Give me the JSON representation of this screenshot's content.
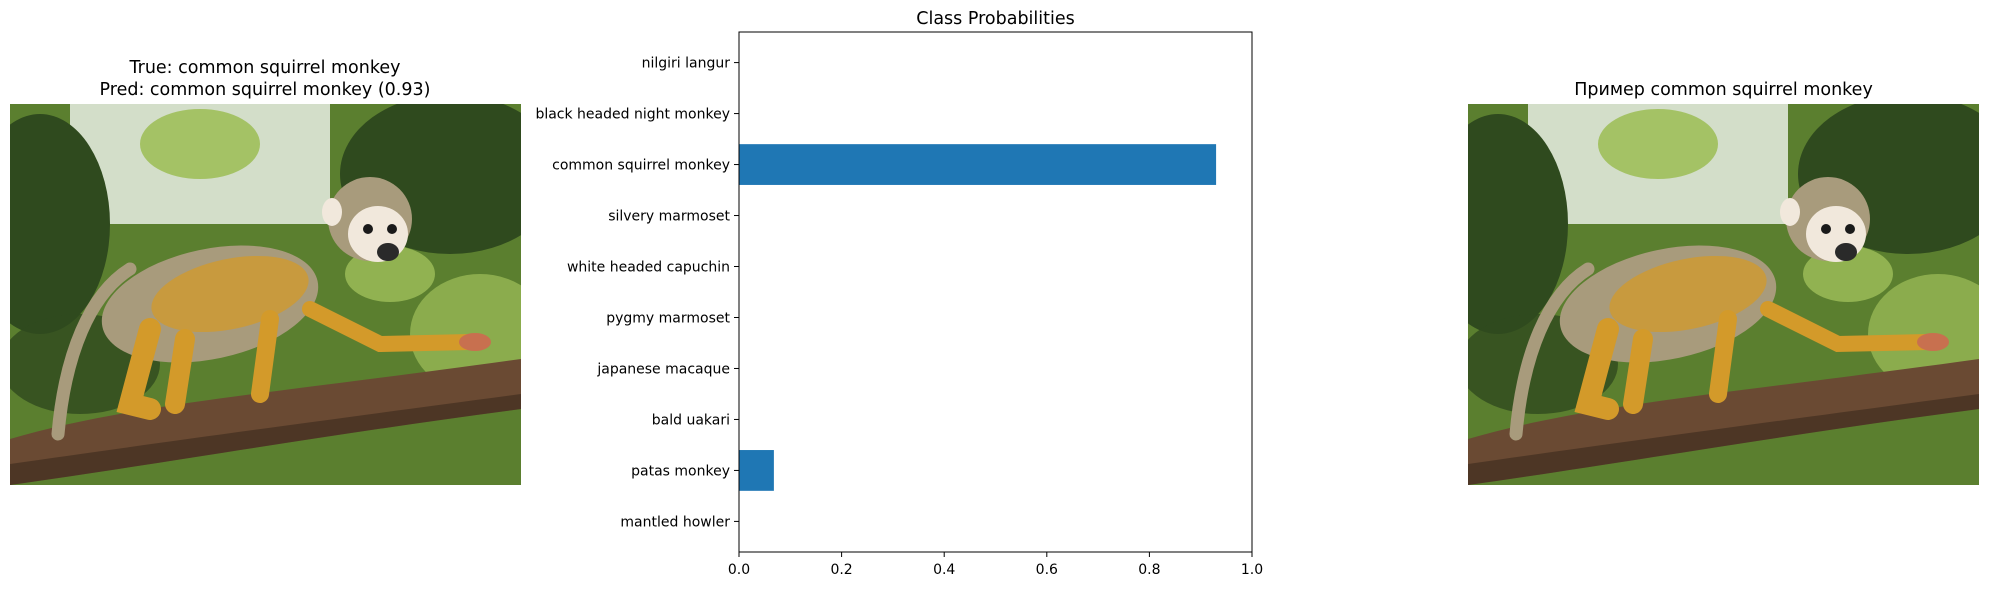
{
  "left_panel": {
    "title_line1": "True: common squirrel monkey",
    "title_line2": "Pred: common squirrel monkey (0.93)"
  },
  "right_panel": {
    "title": "Пример common squirrel monkey"
  },
  "photo_colors": {
    "sky": "#e9efe4",
    "foliage_dark": "#2f4a1e",
    "foliage_mid": "#5b7f2f",
    "foliage_light": "#9fbf5a",
    "branch": "#6a4a33",
    "branch_dark": "#3b2a1c",
    "fur_gold": "#d39a2a",
    "fur_grey": "#a89b7c",
    "face": "#f1e8dc"
  },
  "chart_data": {
    "type": "bar",
    "orientation": "horizontal",
    "title": "Class Probabilities",
    "xlabel": "",
    "ylabel": "",
    "xlim": [
      0,
      1.0
    ],
    "xticks": [
      "0.0",
      "0.2",
      "0.4",
      "0.6",
      "0.8",
      "1.0"
    ],
    "categories": [
      "nilgiri langur",
      "black headed night monkey",
      "common squirrel monkey",
      "silvery marmoset",
      "white headed capuchin",
      "pygmy marmoset",
      "japanese macaque",
      "bald uakari",
      "patas monkey",
      "mantled howler"
    ],
    "values": [
      0.0,
      0.0,
      0.93,
      0.0,
      0.0,
      0.0,
      0.0,
      0.0,
      0.068,
      0.0
    ],
    "bar_color": "#1f77b4",
    "grid": false
  }
}
